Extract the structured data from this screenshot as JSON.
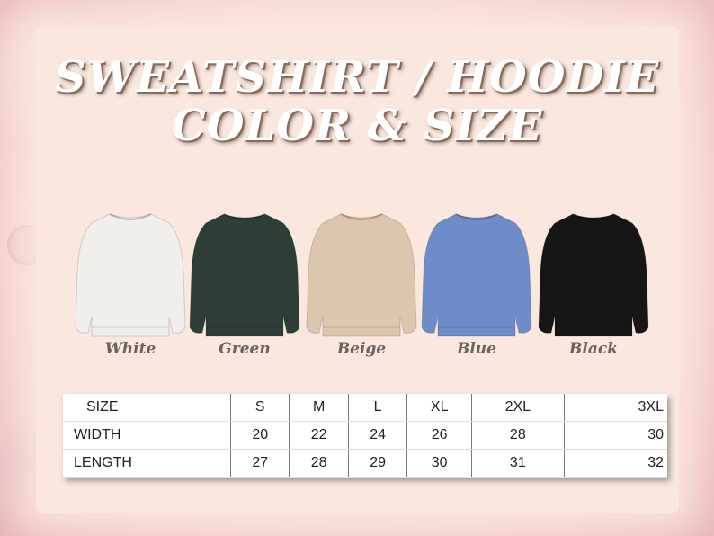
{
  "title": {
    "line1": "SWEATSHIRT / HOODIE",
    "line2": "COLOR & SIZE"
  },
  "colors": [
    {
      "label": "White",
      "hex": "#f1efeb"
    },
    {
      "label": "Green",
      "hex": "#2e3d36"
    },
    {
      "label": "Beige",
      "hex": "#dcc6ae"
    },
    {
      "label": "Blue",
      "hex": "#6e8cc7"
    },
    {
      "label": "Black",
      "hex": "#161616"
    }
  ],
  "size_table": {
    "headers": [
      "SIZE",
      "S",
      "M",
      "L",
      "XL",
      "2XL",
      "3XL"
    ],
    "rows": [
      [
        "WIDTH",
        "20",
        "22",
        "24",
        "26",
        "28",
        "30"
      ],
      [
        "LENGTH",
        "27",
        "28",
        "29",
        "30",
        "31",
        "32"
      ]
    ]
  }
}
